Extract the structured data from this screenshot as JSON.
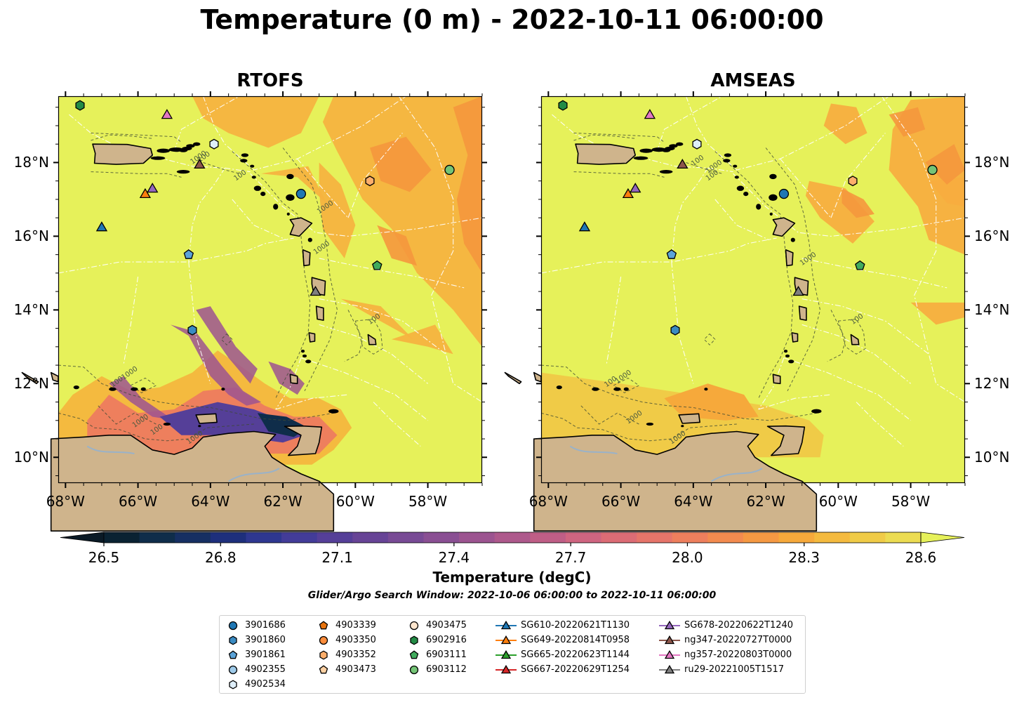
{
  "title": "Temperature (0 m) - 2022-10-11 06:00:00",
  "panels": [
    {
      "id": "rtofs",
      "title": "RTOFS"
    },
    {
      "id": "amseas",
      "title": "AMSEAS"
    }
  ],
  "axes": {
    "lon_labels": [
      "68°W",
      "66°W",
      "64°W",
      "62°W",
      "60°W",
      "58°W"
    ],
    "lat_labels": [
      "18°N",
      "16°N",
      "14°N",
      "12°N",
      "10°N"
    ],
    "lon_range": [
      -68.2,
      -56.5
    ],
    "lat_range": [
      9.3,
      19.8
    ]
  },
  "colorbar": {
    "label": "Temperature (degC)",
    "ticks": [
      "26.5",
      "26.8",
      "27.1",
      "27.4",
      "27.7",
      "28.0",
      "28.3",
      "28.6"
    ],
    "min": 26.5,
    "max": 28.6,
    "extend": "both",
    "colormap": [
      "#0a2232",
      "#0f2d4a",
      "#162f62",
      "#1e2f7c",
      "#2e3790",
      "#433c98",
      "#553f98",
      "#674496",
      "#784a95",
      "#8a4f93",
      "#9c5490",
      "#ae598c",
      "#bf5e86",
      "#cf6580",
      "#dc6c75",
      "#e6756a",
      "#ee7f5d",
      "#f38b4f",
      "#f59943",
      "#f6a93b",
      "#f4ba3f",
      "#f0cb47",
      "#ecdc52",
      "#e6f15a"
    ]
  },
  "search_window": "Glider/Argo Search Window: 2022-10-06 06:00:00 to 2022-10-11 06:00:00",
  "contour_labels": {
    "rtofs": [
      "100",
      "1000",
      "100",
      "1000",
      "100",
      "1000",
      "100",
      "1000",
      "100",
      "1000",
      "1000"
    ],
    "amseas": [
      "100",
      "1000",
      "100",
      "1000",
      "100",
      "1000",
      "100",
      "1000",
      "1000"
    ]
  },
  "legend": [
    {
      "label": "3901686",
      "marker": "circle",
      "color": "#1f77b4"
    },
    {
      "label": "3901860",
      "marker": "hexagon",
      "color": "#3a8bc2"
    },
    {
      "label": "3901861",
      "marker": "pentagon",
      "color": "#5ba3d8"
    },
    {
      "label": "4902355",
      "marker": "circle",
      "color": "#9ecae9"
    },
    {
      "label": "4902534",
      "marker": "hexagon",
      "color": "#deeef9"
    },
    {
      "label": "4903339",
      "marker": "pentagon",
      "color": "#e6730e"
    },
    {
      "label": "4903350",
      "marker": "circle",
      "color": "#fd8d3c"
    },
    {
      "label": "4903352",
      "marker": "hexagon",
      "color": "#fdae6b"
    },
    {
      "label": "4903473",
      "marker": "pentagon",
      "color": "#fdd0a2"
    },
    {
      "label": "4903475",
      "marker": "circle",
      "color": "#fee6ce"
    },
    {
      "label": "6902916",
      "marker": "hexagon",
      "color": "#238b45"
    },
    {
      "label": "6903111",
      "marker": "pentagon",
      "color": "#41ab5d"
    },
    {
      "label": "6903112",
      "marker": "circle",
      "color": "#74c476"
    },
    {
      "label": "SG610-20220621T1130",
      "marker": "triangle",
      "color": "#1f77b4"
    },
    {
      "label": "SG649-20220814T0958",
      "marker": "triangle",
      "color": "#ff7f0e"
    },
    {
      "label": "SG665-20220623T1144",
      "marker": "triangle",
      "color": "#2ca02c"
    },
    {
      "label": "SG667-20220629T1254",
      "marker": "triangle",
      "color": "#d62728"
    },
    {
      "label": "SG678-20220622T1240",
      "marker": "triangle",
      "color": "#9467bd"
    },
    {
      "label": "ng347-20220727T0000",
      "marker": "triangle",
      "color": "#8c564b"
    },
    {
      "label": "ng357-20220803T0000",
      "marker": "triangle",
      "color": "#e377c2"
    },
    {
      "label": "ru29-20221005T1517",
      "marker": "triangle",
      "color": "#7f7f7f"
    }
  ],
  "observations": [
    {
      "label": "3901686",
      "lon": -61.5,
      "lat": 17.15
    },
    {
      "label": "3901860",
      "lon": -64.5,
      "lat": 13.45
    },
    {
      "label": "3901861",
      "lon": -64.6,
      "lat": 15.5
    },
    {
      "label": "4902534",
      "lon": -63.9,
      "lat": 18.5
    },
    {
      "label": "4903352",
      "lon": -59.6,
      "lat": 17.5
    },
    {
      "label": "6902916",
      "lon": -67.6,
      "lat": 19.55
    },
    {
      "label": "6903111",
      "lon": -59.4,
      "lat": 15.2
    },
    {
      "label": "6903112",
      "lon": -57.4,
      "lat": 17.8
    },
    {
      "label": "SG610-20220621T1130",
      "lon": -67.0,
      "lat": 16.25
    },
    {
      "label": "SG649-20220814T0958",
      "lon": -65.8,
      "lat": 17.15
    },
    {
      "label": "SG678-20220622T1240",
      "lon": -65.6,
      "lat": 17.3
    },
    {
      "label": "ng347-20220727T0000",
      "lon": -64.3,
      "lat": 17.95
    },
    {
      "label": "ng357-20220803T0000",
      "lon": -65.2,
      "lat": 19.3
    },
    {
      "label": "ru29-20221005T1517",
      "lon": -61.1,
      "lat": 14.5
    }
  ]
}
